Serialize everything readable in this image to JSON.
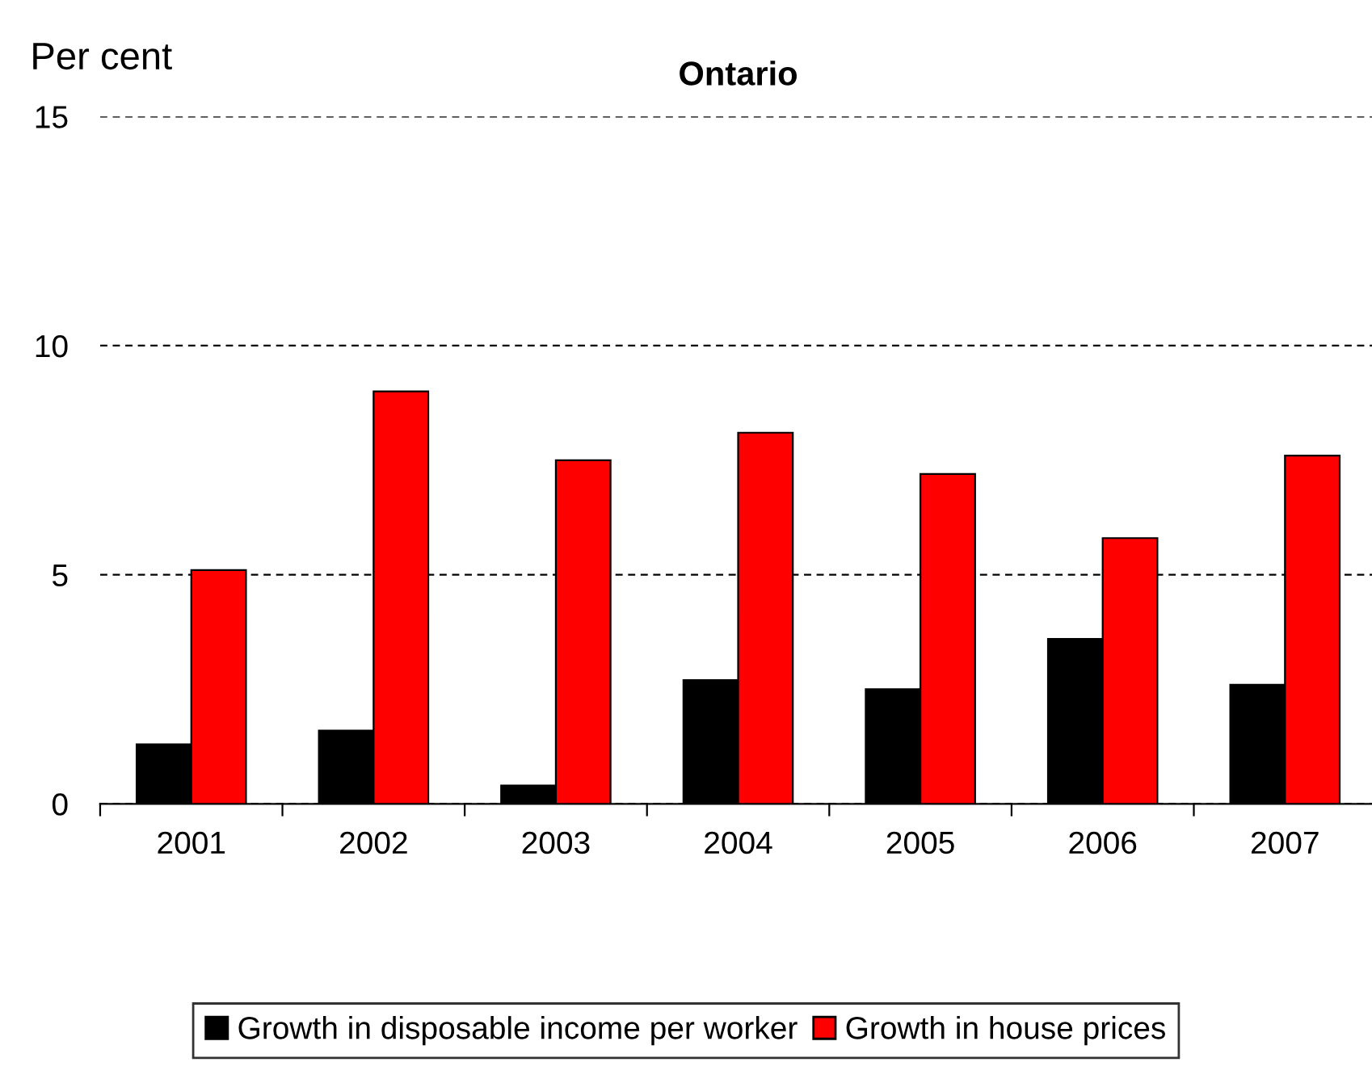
{
  "chart_data": {
    "type": "bar",
    "title": "Ontario",
    "ylabel": "Per cent",
    "categories": [
      "2001",
      "2002",
      "2003",
      "2004",
      "2005",
      "2006",
      "2007"
    ],
    "series": [
      {
        "name": "Growth in disposable income per worker",
        "color": "#000000",
        "values": [
          1.3,
          1.6,
          0.4,
          2.7,
          2.5,
          3.6,
          2.6
        ]
      },
      {
        "name": "Growth in house prices",
        "color": "#ff0000",
        "values": [
          5.1,
          9.0,
          7.5,
          8.1,
          7.2,
          5.8,
          7.6
        ]
      }
    ],
    "ylim": [
      0,
      15
    ],
    "yticks": [
      0,
      5,
      10,
      15
    ],
    "grid": "y",
    "legend": "bottom"
  }
}
